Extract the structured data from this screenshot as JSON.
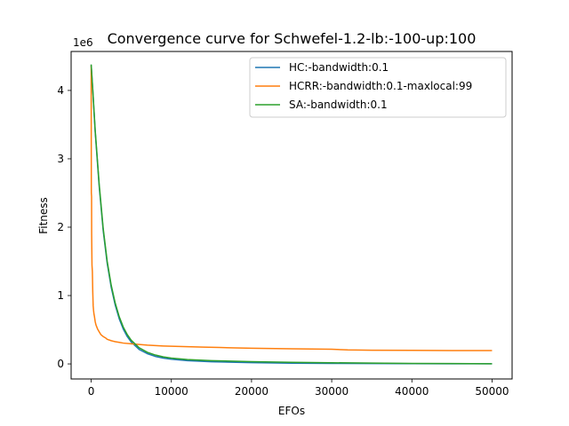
{
  "chart_data": {
    "type": "line",
    "title": "Convergence curve for Schwefel-1.2-lb:-100-up:100",
    "xlabel": "EFOs",
    "ylabel": "Fitness",
    "y_offset_label": "1e6",
    "xlim": [
      -2500,
      52500
    ],
    "ylim": [
      -220000,
      4570000
    ],
    "x_ticks": [
      0,
      10000,
      20000,
      30000,
      40000,
      50000
    ],
    "x_tick_labels": [
      "0",
      "10000",
      "20000",
      "30000",
      "40000",
      "50000"
    ],
    "y_ticks": [
      0,
      1000000,
      2000000,
      3000000,
      4000000
    ],
    "y_tick_labels": [
      "0",
      "1",
      "2",
      "3",
      "4"
    ],
    "legend_position": "upper-right",
    "grid": false,
    "series": [
      {
        "name": "HC:-bandwidth:0.1",
        "color": "#1f77b4",
        "x": [
          0,
          200,
          500,
          1000,
          1500,
          2000,
          2500,
          3000,
          3500,
          4000,
          4500,
          5000,
          6000,
          7000,
          8000,
          9000,
          10000,
          12000,
          15000,
          20000,
          25000,
          30000,
          35000,
          40000,
          45000,
          50000
        ],
        "y": [
          4370000,
          4000000,
          3400000,
          2600000,
          1950000,
          1470000,
          1120000,
          860000,
          660000,
          510000,
          400000,
          320000,
          210000,
          150000,
          110000,
          85000,
          68000,
          48000,
          32000,
          18000,
          11000,
          7000,
          5000,
          3500,
          2500,
          2000
        ]
      },
      {
        "name": "HCRR:-bandwidth:0.1-maxlocal:99",
        "color": "#ff7f0e",
        "x": [
          0,
          10,
          20,
          50,
          60,
          100,
          150,
          200,
          250,
          300,
          350,
          400,
          500,
          600,
          700,
          800,
          1000,
          1200,
          1500,
          1800,
          2000,
          2500,
          3000,
          3500,
          4000,
          5000,
          6000,
          7000,
          8000,
          9000,
          10000,
          12000,
          14000,
          16000,
          18000,
          20000,
          25000,
          30000,
          32000,
          35000,
          40000,
          45000,
          50000
        ],
        "y": [
          4360000,
          3400000,
          2500000,
          2450000,
          1900000,
          1450000,
          1350000,
          1050000,
          850000,
          780000,
          730000,
          700000,
          620000,
          570000,
          540000,
          510000,
          470000,
          430000,
          400000,
          380000,
          360000,
          340000,
          325000,
          315000,
          305000,
          295000,
          285000,
          275000,
          268000,
          262000,
          258000,
          252000,
          245000,
          240000,
          235000,
          230000,
          222000,
          215000,
          205000,
          200000,
          198000,
          196000,
          195000
        ]
      },
      {
        "name": "SA:-bandwidth:0.1",
        "color": "#2ca02c",
        "x": [
          0,
          200,
          500,
          1000,
          1500,
          2000,
          2500,
          3000,
          3500,
          4000,
          4500,
          5000,
          6000,
          7000,
          8000,
          9000,
          10000,
          12000,
          15000,
          20000,
          25000,
          30000,
          35000,
          40000,
          45000,
          50000
        ],
        "y": [
          4380000,
          4010000,
          3420000,
          2630000,
          1980000,
          1500000,
          1150000,
          890000,
          690000,
          540000,
          430000,
          345000,
          235000,
          170000,
          130000,
          103000,
          85000,
          64000,
          48000,
          33000,
          24000,
          17000,
          12000,
          8000,
          5000,
          3000
        ]
      }
    ]
  }
}
